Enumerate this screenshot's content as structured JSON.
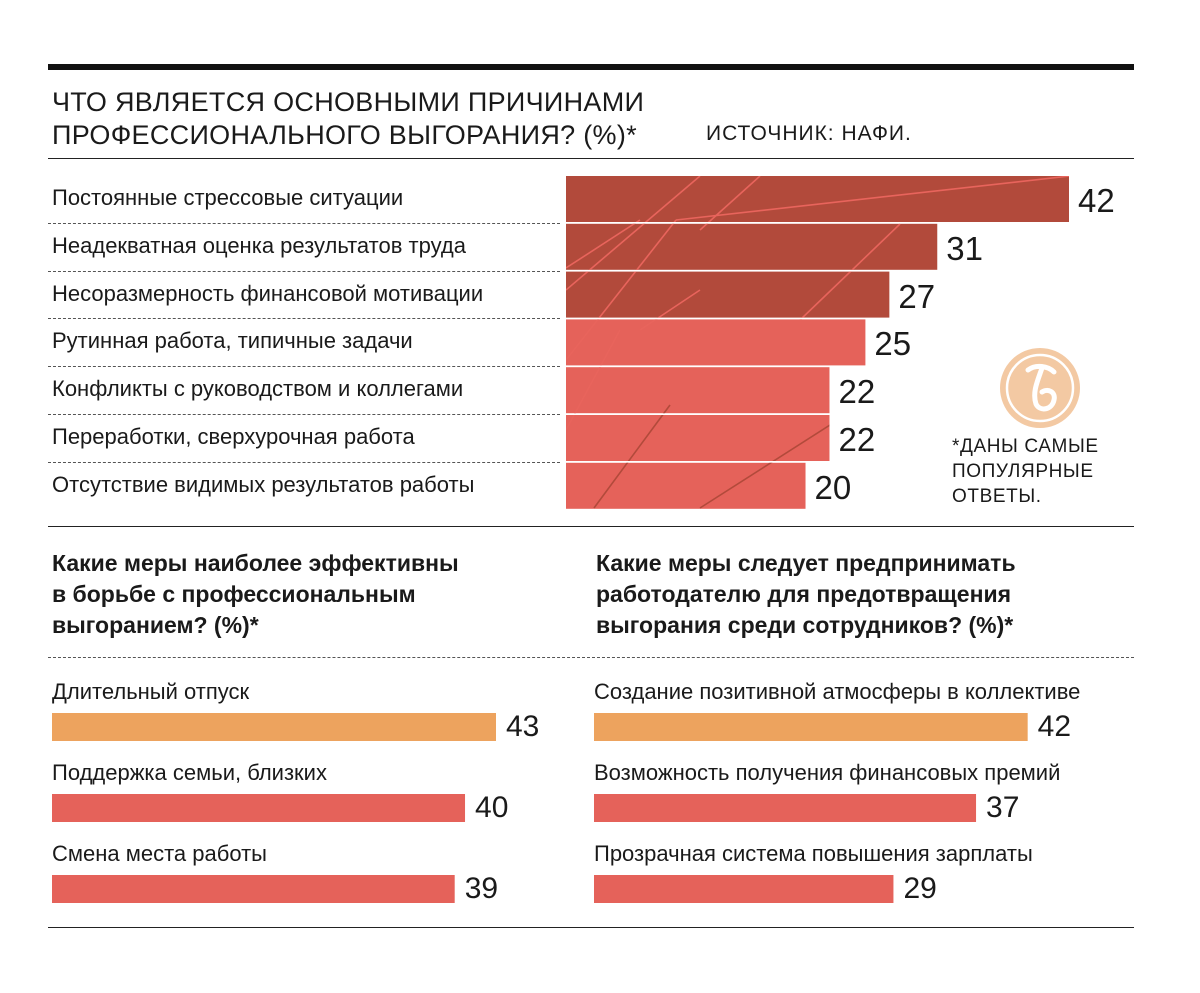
{
  "header": {
    "title_line1": "ЧТО ЯВЛЯЕТСЯ ОСНОВНЫМИ ПРИЧИНАМИ",
    "title_line2": "ПРОФЕССИОНАЛЬНОГО ВЫГОРАНИЯ? (%)*",
    "source": "ИСТОЧНИК: НАФИ."
  },
  "footnote": {
    "line1": "*ДАНЫ САМЫЕ",
    "line2": "ПОПУЛЯРНЫЕ",
    "line3": "ОТВЕТЫ."
  },
  "logo": {
    "icon": "kommersant-logo-icon",
    "color": "#f3c9a3"
  },
  "colors": {
    "dark_red": "#b24a3b",
    "red": "#e5625a",
    "orange": "#eda35e",
    "pattern_line": "#e8645c",
    "pattern_dark": "#b24a3b"
  },
  "chart_data": [
    {
      "type": "bar",
      "orientation": "horizontal",
      "title": "ЧТО ЯВЛЯЕТСЯ ОСНОВНЫМИ ПРИЧИНАМИ ПРОФЕССИОНАЛЬНОГО ВЫГОРАНИЯ? (%)*",
      "categories": [
        "Постоянные стрессовые ситуации",
        "Неадекватная оценка результатов труда",
        "Несоразмерность финансовой мотивации",
        "Рутинная работа, типичные задачи",
        "Конфликты с руководством и коллегами",
        "Переработки, сверхурочная работа",
        "Отсутствие видимых результатов работы"
      ],
      "values": [
        42,
        31,
        27,
        25,
        22,
        22,
        20
      ],
      "value_labels": [
        "42",
        "31",
        "27",
        "25",
        "22",
        "22",
        "20"
      ],
      "bar_colors": [
        "#b24a3b",
        "#b24a3b",
        "#b24a3b",
        "#e5625a",
        "#e5625a",
        "#e5625a",
        "#e5625a"
      ]
    },
    {
      "type": "bar",
      "orientation": "horizontal",
      "title_lines": [
        "Какие меры наиболее эффективны",
        "в борьбе с профессиональным",
        "выгоранием? (%)*"
      ],
      "categories": [
        "Длительный отпуск",
        "Поддержка семьи, близких",
        "Смена места работы"
      ],
      "values": [
        43,
        40,
        39
      ],
      "value_labels": [
        "43",
        "40",
        "39"
      ],
      "bar_colors": [
        "#eda35e",
        "#e5625a",
        "#e5625a"
      ]
    },
    {
      "type": "bar",
      "orientation": "horizontal",
      "title_lines": [
        "Какие меры следует предпринимать",
        "работодателю для предотвращения",
        "выгорания среди сотрудников? (%)*"
      ],
      "categories": [
        "Создание позитивной атмосферы в коллективе",
        "Возможность получения финансовых премий",
        "Прозрачная система повышения зарплаты"
      ],
      "values": [
        42,
        37,
        29
      ],
      "value_labels": [
        "42",
        "37",
        "29"
      ],
      "bar_colors": [
        "#eda35e",
        "#e5625a",
        "#e5625a"
      ]
    }
  ]
}
